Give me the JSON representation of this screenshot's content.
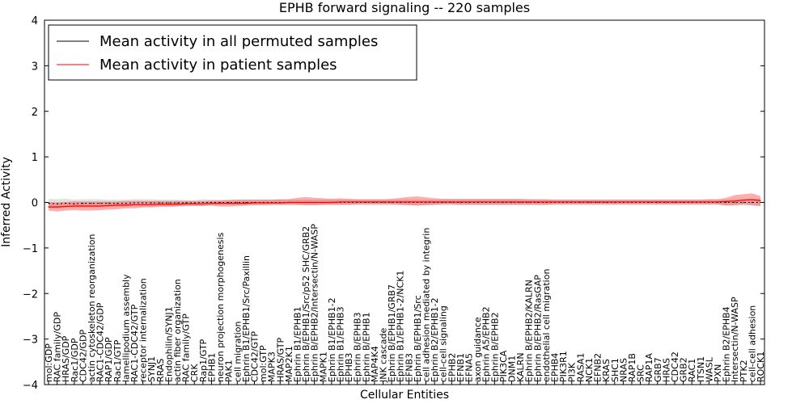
{
  "chart_data": {
    "type": "line",
    "title": "EPHB forward signaling -- 220 samples",
    "xlabel": "Cellular Entities",
    "ylabel": "Inferred Activity",
    "ylim": [
      -4,
      4
    ],
    "yticks": [
      -4,
      -3,
      -2,
      -1,
      0,
      1,
      2,
      3,
      4
    ],
    "ytick_labels": [
      "−4",
      "−3",
      "−2",
      "−1",
      "0",
      "1",
      "2",
      "3",
      "4"
    ],
    "legend": {
      "position": "top-left",
      "entries": [
        {
          "label": "Mean activity in all permuted samples",
          "color": "#000000"
        },
        {
          "label": "Mean activity in patient samples",
          "color": "#ff0000"
        }
      ]
    },
    "categories": [
      "mol:GDP",
      "RAC family/GDP",
      "HRAS/GDP",
      "Rac1/GDP",
      "CDC42/GDP",
      "actin cytoskeleton reorganization",
      "RAC1-CDC42/GDP",
      "RAP1/GDP",
      "Rac1/GTP",
      "lamellipodium assembly",
      "RAC1-CDC42/GTP",
      "receptor internalization",
      "SYNJ1",
      "RRAS",
      "Endophilin/SYNJ1",
      "actin fiber organization",
      "RAC family/GTP",
      "CRK",
      "Rap1/GTP",
      "EPHB1",
      "neuron projection morphogenesis",
      "PAK1",
      "cell migration",
      "Ephrin B1/EPHB1/Src/Paxillin",
      "CDC42/GTP",
      "mol:GTP",
      "MAPK3",
      "HRAS/GTP",
      "MAP2K1",
      "Ephrin B1/EPHB1",
      "Ephrin B/EPHB1/Src/p52 SHC/GRB2",
      "Ephrin B/EPHB2/Intersectin/N-WASP",
      "MAPK1",
      "Ephrin B1/EPHB1-2",
      "Ephrin B1/EPHB3",
      "EPHB3",
      "Ephrin B/EPHB3",
      "Ephrin B/EPHB1",
      "MAP4K4",
      "JNK cascade",
      "Ephrin B/EPHB1/GRB7",
      "Ephrin B1/EPHB1-2/NCK1",
      "EFNB3",
      "Ephrin B/EPHB1/Src",
      "cell adhesion mediated by integrin",
      "Ephrin B2/EPHB1-2",
      "cell-cell signaling",
      "EPHB2",
      "EFNB1",
      "EFNA5",
      "axon guidance",
      "Ephrin A5/EPHB2",
      "Ephrin B/EPHB2",
      "PIK3CA",
      "DNM1",
      "KALRN",
      "Ephrin B/EPHB2/KALRN",
      "Ephrin B/EPHB2/RasGAP",
      "endothelial cell migration",
      "EPHB4",
      "PIK3R1",
      "PI3K",
      "RASA1",
      "NCK1",
      "EFNB2",
      "KRAS",
      "SHC1",
      "NRAS",
      "RAP1B",
      "SRC",
      "RAP1A",
      "GRB7",
      "HRAS",
      "CDC42",
      "GRB2",
      "RAC1",
      "ITSN1",
      "WASL",
      "PXN",
      "Ephrin B2/EPHB4",
      "Intersectin/N-WASP",
      "PTK2",
      "cell-cell adhesion",
      "ROCK1"
    ],
    "series": [
      {
        "name": "Mean activity in all permuted samples",
        "color": "#000000",
        "values": [
          -0.02,
          -0.03,
          -0.02,
          -0.03,
          -0.02,
          -0.02,
          -0.02,
          -0.02,
          -0.02,
          -0.02,
          -0.01,
          -0.01,
          -0.01,
          -0.01,
          -0.01,
          -0.01,
          -0.01,
          -0.01,
          0.0,
          0.0,
          0.0,
          0.0,
          0.0,
          0.0,
          0.0,
          0.0,
          0.0,
          0.0,
          0.0,
          0.0,
          0.0,
          0.0,
          0.0,
          0.0,
          0.0,
          0.0,
          0.0,
          0.0,
          0.0,
          0.0,
          0.0,
          0.0,
          0.0,
          0.0,
          0.0,
          0.0,
          0.0,
          0.0,
          0.0,
          0.0,
          0.0,
          0.0,
          0.0,
          0.0,
          0.0,
          0.0,
          0.0,
          0.0,
          0.0,
          0.0,
          0.0,
          0.0,
          0.0,
          0.0,
          0.0,
          0.0,
          0.0,
          0.0,
          0.0,
          0.0,
          0.0,
          0.0,
          0.0,
          0.0,
          0.0,
          0.0,
          0.0,
          0.0,
          0.0,
          0.0,
          0.0,
          0.0,
          0.0,
          0.0
        ],
        "lower": [
          -0.12,
          -0.13,
          -0.12,
          -0.12,
          -0.11,
          -0.11,
          -0.11,
          -0.1,
          -0.1,
          -0.1,
          -0.09,
          -0.09,
          -0.09,
          -0.08,
          -0.08,
          -0.08,
          -0.07,
          -0.07,
          -0.07,
          -0.06,
          -0.06,
          -0.06,
          -0.06,
          -0.06,
          -0.06,
          -0.06,
          -0.06,
          -0.06,
          -0.06,
          -0.06,
          -0.06,
          -0.06,
          -0.06,
          -0.06,
          -0.06,
          -0.06,
          -0.06,
          -0.06,
          -0.06,
          -0.06,
          -0.06,
          -0.06,
          -0.06,
          -0.06,
          -0.06,
          -0.06,
          -0.06,
          -0.06,
          -0.06,
          -0.06,
          -0.06,
          -0.06,
          -0.06,
          -0.06,
          -0.06,
          -0.06,
          -0.06,
          -0.06,
          -0.06,
          -0.06,
          -0.06,
          -0.06,
          -0.06,
          -0.06,
          -0.06,
          -0.06,
          -0.06,
          -0.06,
          -0.06,
          -0.06,
          -0.06,
          -0.06,
          -0.06,
          -0.06,
          -0.06,
          -0.06,
          -0.06,
          -0.06,
          -0.06,
          -0.06,
          -0.07,
          -0.07,
          -0.07,
          -0.08
        ],
        "upper": [
          0.08,
          0.07,
          0.08,
          0.06,
          0.07,
          0.07,
          0.07,
          0.06,
          0.06,
          0.06,
          0.07,
          0.07,
          0.07,
          0.06,
          0.06,
          0.06,
          0.05,
          0.05,
          0.07,
          0.06,
          0.06,
          0.06,
          0.06,
          0.06,
          0.06,
          0.06,
          0.06,
          0.06,
          0.06,
          0.06,
          0.06,
          0.06,
          0.06,
          0.06,
          0.06,
          0.06,
          0.06,
          0.06,
          0.06,
          0.06,
          0.06,
          0.06,
          0.06,
          0.06,
          0.06,
          0.06,
          0.06,
          0.06,
          0.06,
          0.06,
          0.06,
          0.06,
          0.06,
          0.06,
          0.06,
          0.06,
          0.06,
          0.06,
          0.06,
          0.06,
          0.06,
          0.06,
          0.06,
          0.06,
          0.06,
          0.06,
          0.06,
          0.06,
          0.06,
          0.06,
          0.06,
          0.06,
          0.06,
          0.06,
          0.06,
          0.06,
          0.06,
          0.06,
          0.06,
          0.06,
          0.07,
          0.07,
          0.07,
          0.08
        ]
      },
      {
        "name": "Mean activity in patient samples",
        "color": "#ff0000",
        "values": [
          -0.1,
          -0.1,
          -0.09,
          -0.08,
          -0.08,
          -0.08,
          -0.08,
          -0.07,
          -0.06,
          -0.06,
          -0.05,
          -0.05,
          -0.05,
          -0.04,
          -0.04,
          -0.04,
          -0.03,
          -0.03,
          -0.03,
          -0.02,
          -0.02,
          -0.02,
          -0.02,
          -0.02,
          -0.01,
          -0.01,
          -0.01,
          -0.01,
          0.0,
          0.0,
          0.0,
          0.0,
          0.0,
          0.0,
          0.01,
          0.01,
          0.01,
          0.01,
          0.01,
          0.01,
          0.01,
          0.01,
          0.01,
          0.01,
          0.01,
          0.01,
          0.01,
          0.01,
          0.01,
          0.01,
          0.01,
          0.01,
          0.01,
          0.01,
          0.01,
          0.01,
          0.01,
          0.01,
          0.01,
          0.01,
          0.01,
          0.01,
          0.01,
          0.01,
          0.01,
          0.01,
          0.01,
          0.01,
          0.01,
          0.01,
          0.01,
          0.01,
          0.01,
          0.01,
          0.01,
          0.01,
          0.01,
          0.01,
          0.01,
          0.02,
          0.03,
          0.05,
          0.06,
          0.04
        ],
        "lower": [
          -0.18,
          -0.2,
          -0.18,
          -0.17,
          -0.18,
          -0.18,
          -0.17,
          -0.16,
          -0.15,
          -0.13,
          -0.13,
          -0.11,
          -0.11,
          -0.1,
          -0.1,
          -0.09,
          -0.08,
          -0.08,
          -0.08,
          -0.07,
          -0.09,
          -0.09,
          -0.08,
          -0.07,
          -0.06,
          -0.06,
          -0.05,
          -0.05,
          -0.05,
          -0.05,
          -0.06,
          -0.06,
          -0.05,
          -0.05,
          -0.05,
          -0.05,
          -0.04,
          -0.04,
          -0.04,
          -0.04,
          -0.04,
          -0.05,
          -0.06,
          -0.07,
          -0.06,
          -0.05,
          -0.04,
          -0.04,
          -0.05,
          -0.05,
          -0.05,
          -0.05,
          -0.05,
          -0.05,
          -0.05,
          -0.05,
          -0.05,
          -0.05,
          -0.05,
          -0.04,
          -0.04,
          -0.04,
          -0.04,
          -0.04,
          -0.04,
          -0.04,
          -0.04,
          -0.04,
          -0.04,
          -0.04,
          -0.04,
          -0.04,
          -0.04,
          -0.04,
          -0.04,
          -0.04,
          -0.04,
          -0.04,
          -0.04,
          -0.07,
          -0.06,
          -0.04,
          -0.06,
          -0.08
        ],
        "upper": [
          0.01,
          0.0,
          0.01,
          0.02,
          0.02,
          0.02,
          0.02,
          0.02,
          0.02,
          0.03,
          0.03,
          0.03,
          0.03,
          0.03,
          0.03,
          0.03,
          0.03,
          0.03,
          0.03,
          0.04,
          0.04,
          0.05,
          0.06,
          0.06,
          0.06,
          0.06,
          0.06,
          0.07,
          0.07,
          0.1,
          0.12,
          0.1,
          0.09,
          0.08,
          0.09,
          0.08,
          0.07,
          0.07,
          0.07,
          0.07,
          0.08,
          0.1,
          0.12,
          0.13,
          0.11,
          0.09,
          0.08,
          0.08,
          0.08,
          0.08,
          0.08,
          0.08,
          0.08,
          0.08,
          0.08,
          0.08,
          0.07,
          0.07,
          0.07,
          0.06,
          0.06,
          0.06,
          0.06,
          0.06,
          0.06,
          0.06,
          0.06,
          0.06,
          0.06,
          0.06,
          0.06,
          0.06,
          0.06,
          0.06,
          0.06,
          0.06,
          0.06,
          0.07,
          0.07,
          0.1,
          0.16,
          0.18,
          0.2,
          0.14
        ]
      }
    ]
  }
}
